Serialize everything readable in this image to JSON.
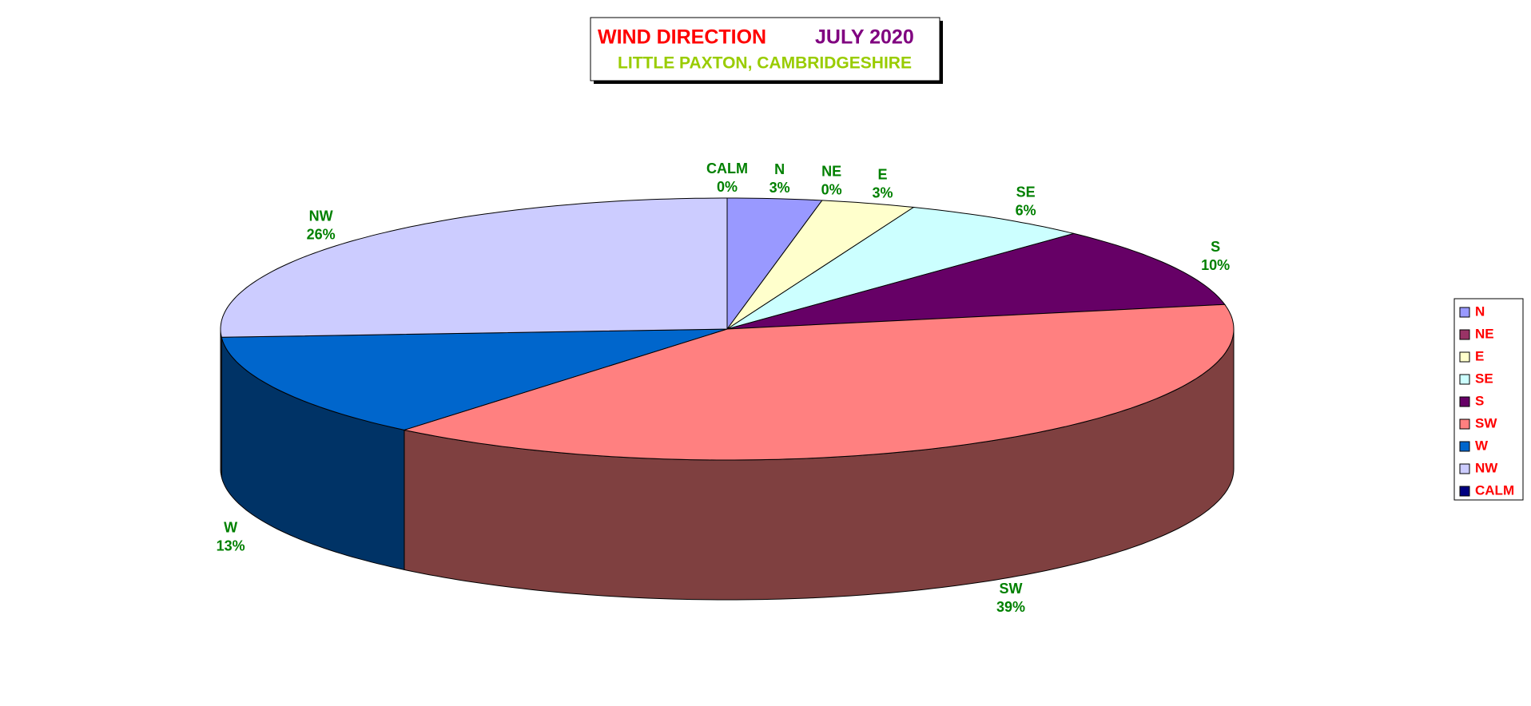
{
  "chart_data": {
    "type": "pie",
    "title": "WIND DIRECTION",
    "title_date": "JULY 2020",
    "subtitle": "LITTLE PAXTON, CAMBRIDGESHIRE",
    "categories": [
      "N",
      "NE",
      "E",
      "SE",
      "S",
      "SW",
      "W",
      "NW",
      "CALM"
    ],
    "values": [
      3,
      0,
      3,
      6,
      10,
      39,
      13,
      26,
      0
    ],
    "value_labels": [
      "3%",
      "0%",
      "3%",
      "6%",
      "10%",
      "39%",
      "13%",
      "26%",
      "0%"
    ],
    "colors": [
      "#9999ff",
      "#993366",
      "#ffffcc",
      "#ccffff",
      "#660066",
      "#ff8080",
      "#0066cc",
      "#ccccff",
      "#000080"
    ],
    "legend": "right"
  }
}
